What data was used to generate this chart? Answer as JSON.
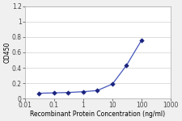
{
  "x_actual": [
    0.03,
    0.1,
    0.3,
    1,
    3,
    10,
    30,
    100
  ],
  "y_actual": [
    0.07,
    0.075,
    0.08,
    0.09,
    0.105,
    0.19,
    0.43,
    0.76
  ],
  "line_color": "#4455bb",
  "marker_color": "#1a237e",
  "marker": "D",
  "ylim": [
    0,
    1.2
  ],
  "yticks": [
    0,
    0.2,
    0.4,
    0.6,
    0.8,
    1.0,
    1.2
  ],
  "ytick_labels": [
    "0",
    "0.2",
    "0.4",
    "0.6",
    "0.8",
    "1",
    "1.2"
  ],
  "xtick_vals": [
    0.01,
    0.1,
    1,
    10,
    100,
    1000
  ],
  "xtick_labels": [
    "0.01",
    "0.1",
    "1",
    "10",
    "100",
    "1000"
  ],
  "xlabel": "Recombinant Protein Concentration (ng/ml)",
  "ylabel": "OD450",
  "background_color": "#f0f0f0",
  "plot_bg_color": "#ffffff",
  "grid_color": "#d8d8d8",
  "axis_fontsize": 5.5,
  "tick_fontsize": 5.5,
  "linewidth": 0.9,
  "markersize": 2.8
}
